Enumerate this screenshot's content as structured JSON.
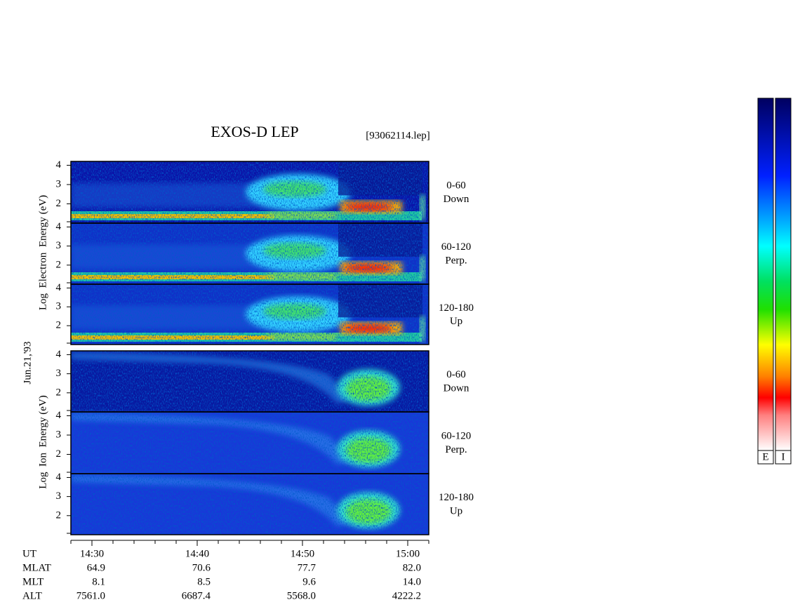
{
  "header": {
    "title": "EXOS-D LEP",
    "file": "[93062114.lep]"
  },
  "date": "Jun.21,'93",
  "energy_range": [
    1,
    4.2
  ],
  "energy_ticks": [
    4,
    3,
    2
  ],
  "electron": {
    "axis_label": "Log  Electron  Energy (eV)",
    "panels": [
      {
        "pitch": "0-60",
        "direction": "Down"
      },
      {
        "pitch": "60-120",
        "direction": "Perp."
      },
      {
        "pitch": "120-180",
        "direction": "Up"
      }
    ]
  },
  "ion": {
    "axis_label": "Log  Ion  Energy (eV)",
    "panels": [
      {
        "pitch": "0-60",
        "direction": "Down"
      },
      {
        "pitch": "60-120",
        "direction": "Perp."
      },
      {
        "pitch": "120-180",
        "direction": "Up"
      }
    ]
  },
  "orbit": [
    {
      "label": "UT",
      "values": [
        "14:30",
        "14:40",
        "14:50",
        "15:00"
      ]
    },
    {
      "label": "MLAT",
      "values": [
        "64.9",
        "70.6",
        "77.7",
        "82.0"
      ]
    },
    {
      "label": "MLT",
      "values": [
        "8.1",
        "8.5",
        "9.6",
        "14.0"
      ]
    },
    {
      "label": "ALT",
      "values": [
        "7561.0",
        "6687.4",
        "5568.0",
        "4222.2"
      ]
    }
  ],
  "colorbars": [
    "E",
    "I"
  ]
}
